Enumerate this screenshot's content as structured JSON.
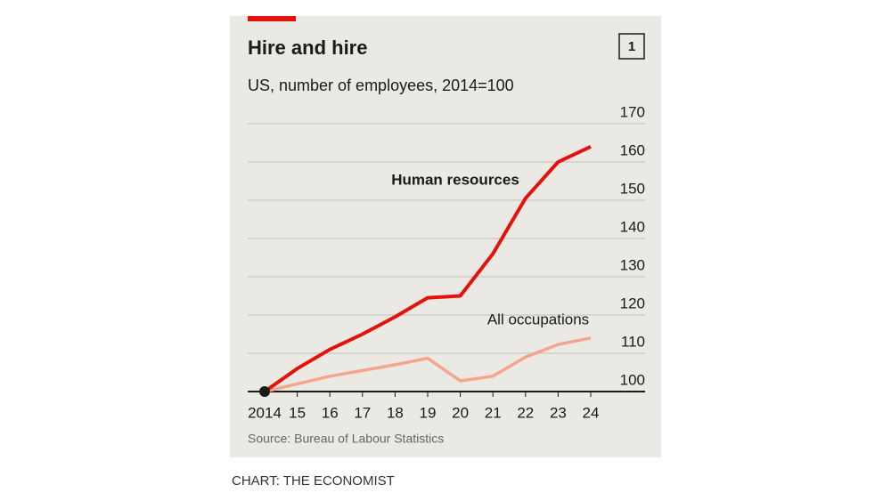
{
  "chart_data": {
    "type": "line",
    "title": "Hire and hire",
    "badge": "1",
    "subtitle": "US, number of employees, 2014=100",
    "source": "Source: Bureau of Labour Statistics",
    "credit": "CHART: THE ECONOMIST",
    "categories": [
      "2014",
      "15",
      "16",
      "17",
      "18",
      "19",
      "20",
      "21",
      "22",
      "23",
      "24"
    ],
    "series": [
      {
        "name": "Human resources",
        "color": "#e3120b",
        "values": [
          100,
          106,
          111,
          115,
          119.5,
          124.5,
          125,
          136,
          150.5,
          160,
          164
        ]
      },
      {
        "name": "All occupations",
        "color": "#f4a58c",
        "values": [
          100,
          102,
          104,
          105.5,
          107,
          108.7,
          102.8,
          104,
          109,
          112.3,
          114
        ]
      }
    ],
    "ylim": [
      100,
      170
    ],
    "yticks": [
      100,
      110,
      120,
      130,
      140,
      150,
      160,
      170
    ],
    "grid": true
  }
}
